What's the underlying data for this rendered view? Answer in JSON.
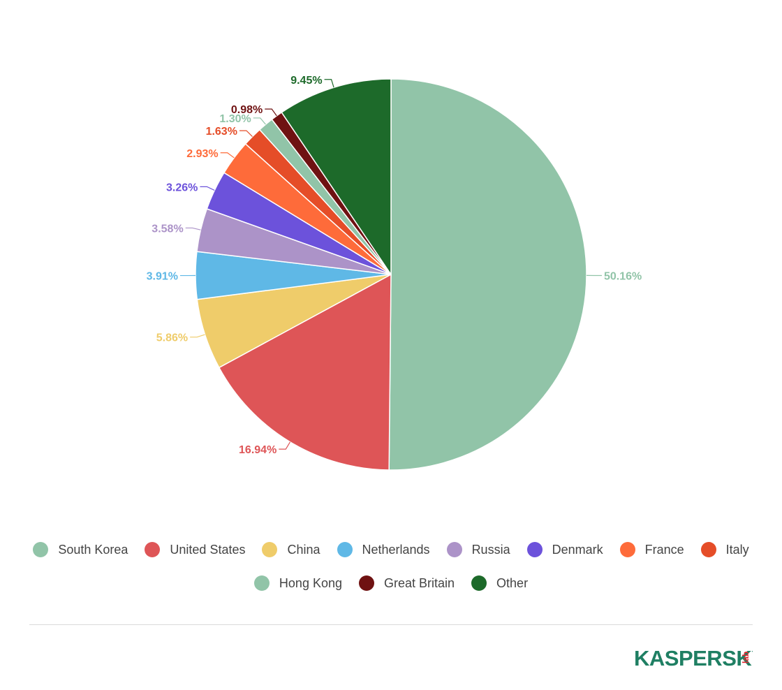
{
  "chart_data": {
    "type": "pie",
    "series": [
      {
        "name": "South Korea",
        "value": 50.16,
        "label": "50.16%",
        "color": "#91c4a8"
      },
      {
        "name": "United States",
        "value": 16.94,
        "label": "16.94%",
        "color": "#de5557"
      },
      {
        "name": "China",
        "value": 5.86,
        "label": "5.86%",
        "color": "#efcc6a"
      },
      {
        "name": "Netherlands",
        "value": 3.91,
        "label": "3.91%",
        "color": "#5fb8e6"
      },
      {
        "name": "Russia",
        "value": 3.58,
        "label": "3.58%",
        "color": "#ac93c8"
      },
      {
        "name": "Denmark",
        "value": 3.26,
        "label": "3.26%",
        "color": "#6c52db"
      },
      {
        "name": "France",
        "value": 2.93,
        "label": "2.93%",
        "color": "#fe6b3a"
      },
      {
        "name": "Italy",
        "value": 1.63,
        "label": "1.63%",
        "color": "#e54d28"
      },
      {
        "name": "Hong Kong",
        "value": 1.3,
        "label": "1.30%",
        "color": "#91c4a8"
      },
      {
        "name": "Great Britain",
        "value": 0.98,
        "label": "0.98%",
        "color": "#6f1212"
      },
      {
        "name": "Other",
        "value": 9.45,
        "label": "9.45%",
        "color": "#1d6a2a"
      }
    ],
    "legend_position": "bottom",
    "start_angle": "top, clockwise"
  },
  "legend": {
    "rows": [
      [
        "South Korea",
        "United States",
        "China",
        "Netherlands",
        "Russia",
        "Denmark",
        "France",
        "Italy"
      ],
      [
        "Hong Kong",
        "Great Britain",
        "Other"
      ]
    ]
  },
  "logo": {
    "text": "KASPERSKY",
    "suffix": "lab",
    "color": "#1f7f63",
    "accent": "#e2242c"
  }
}
